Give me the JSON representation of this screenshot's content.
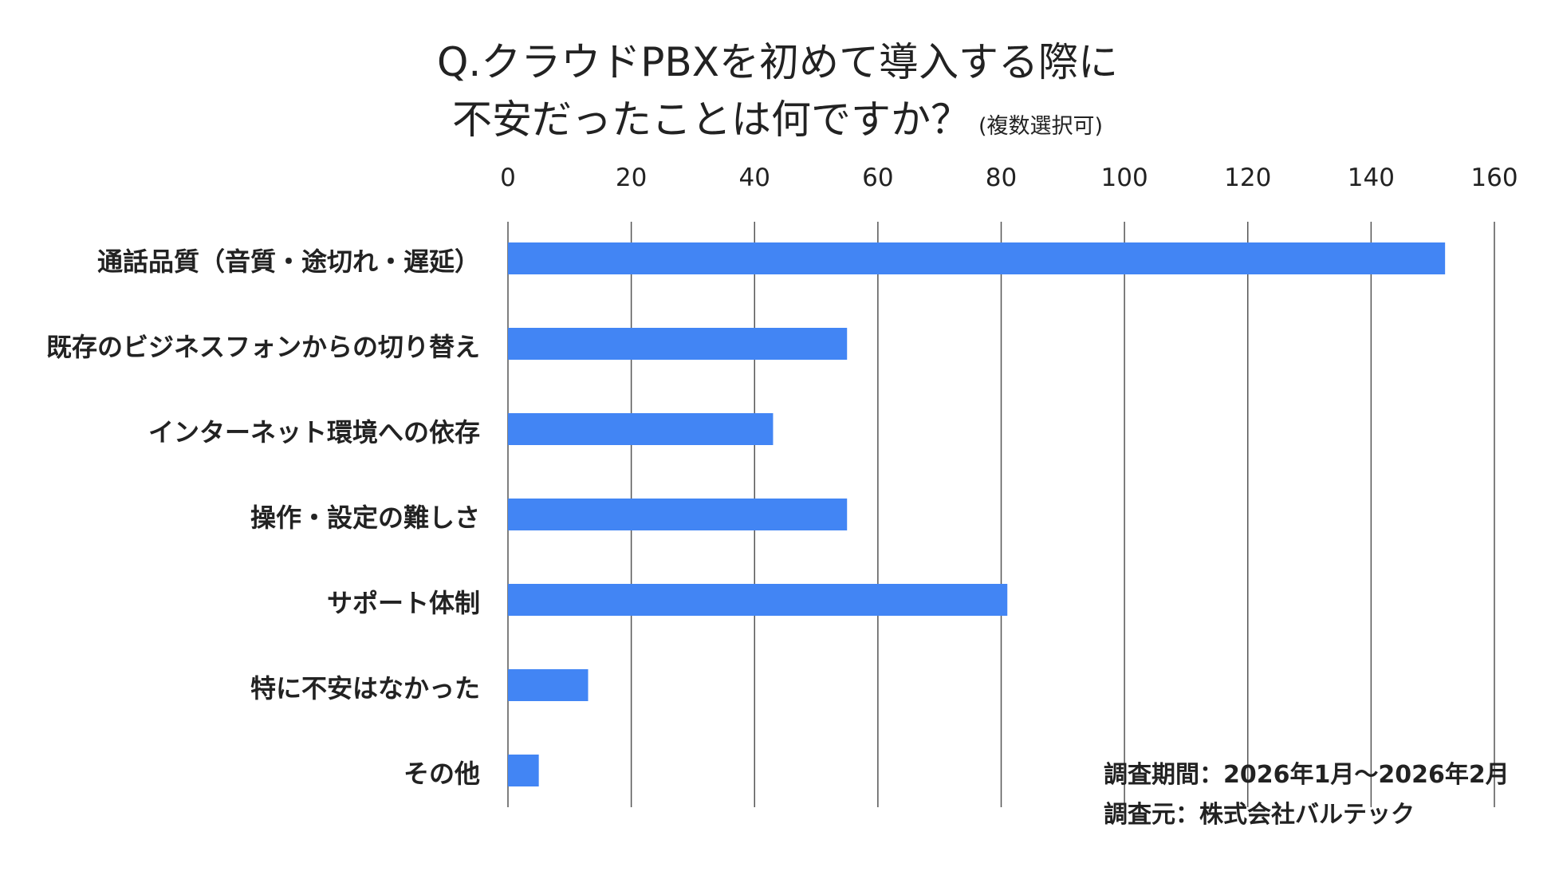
{
  "chart_data": {
    "type": "bar",
    "orientation": "horizontal",
    "title": "Q.クラウドPBXを初めて導入する際に",
    "title_line2": "不安だったことは何ですか？",
    "title_note": "(複数選択可)",
    "categories": [
      "通話品質（音質・途切れ・遅延）",
      "既存のビジネスフォンからの切り替え",
      "インターネット環境への依存",
      "操作・設定の難しさ",
      "サポート体制",
      "特に不安はなかった",
      "その他"
    ],
    "values": [
      152,
      55,
      43,
      55,
      81,
      13,
      5
    ],
    "xlim": [
      0,
      160
    ],
    "ticks": [
      0,
      20,
      40,
      60,
      80,
      100,
      120,
      140,
      160
    ],
    "tick_labels": [
      "0",
      "20",
      "40",
      "60",
      "80",
      "100",
      "120",
      "140",
      "160"
    ],
    "axis_position": "top",
    "grid": true,
    "bar_color": "#4285f4",
    "grid_color": "#555555"
  },
  "footnotes": {
    "period": "調査期間：2026年1月〜2026年2月",
    "source": "調査元：株式会社バルテック"
  }
}
